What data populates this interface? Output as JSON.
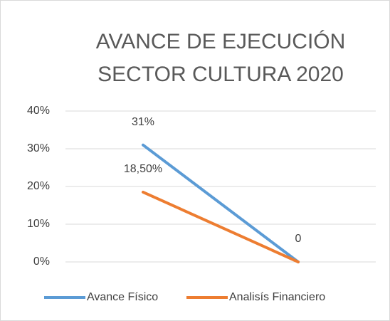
{
  "chart_data": {
    "type": "line",
    "title": [
      "AVANCE DE EJECUCIÓN",
      "SECTOR CULTURA 2020"
    ],
    "categories": [
      null,
      null
    ],
    "series": [
      {
        "name": "Avance Físico",
        "color": "#5b9bd5",
        "values": [
          31,
          0
        ],
        "value_labels": [
          "31%",
          null
        ]
      },
      {
        "name": "Analisís Financiero",
        "color": "#ed7d31",
        "values": [
          18.5,
          0
        ],
        "value_labels": [
          "18,50%",
          "0"
        ]
      }
    ],
    "ylim": [
      0,
      40
    ],
    "yticks": [
      {
        "value": 0,
        "label": "0%"
      },
      {
        "value": 10,
        "label": "10%"
      },
      {
        "value": 20,
        "label": "20%"
      },
      {
        "value": 30,
        "label": "30%"
      },
      {
        "value": 40,
        "label": "40%"
      }
    ],
    "grid": true,
    "legend": "bottom"
  }
}
